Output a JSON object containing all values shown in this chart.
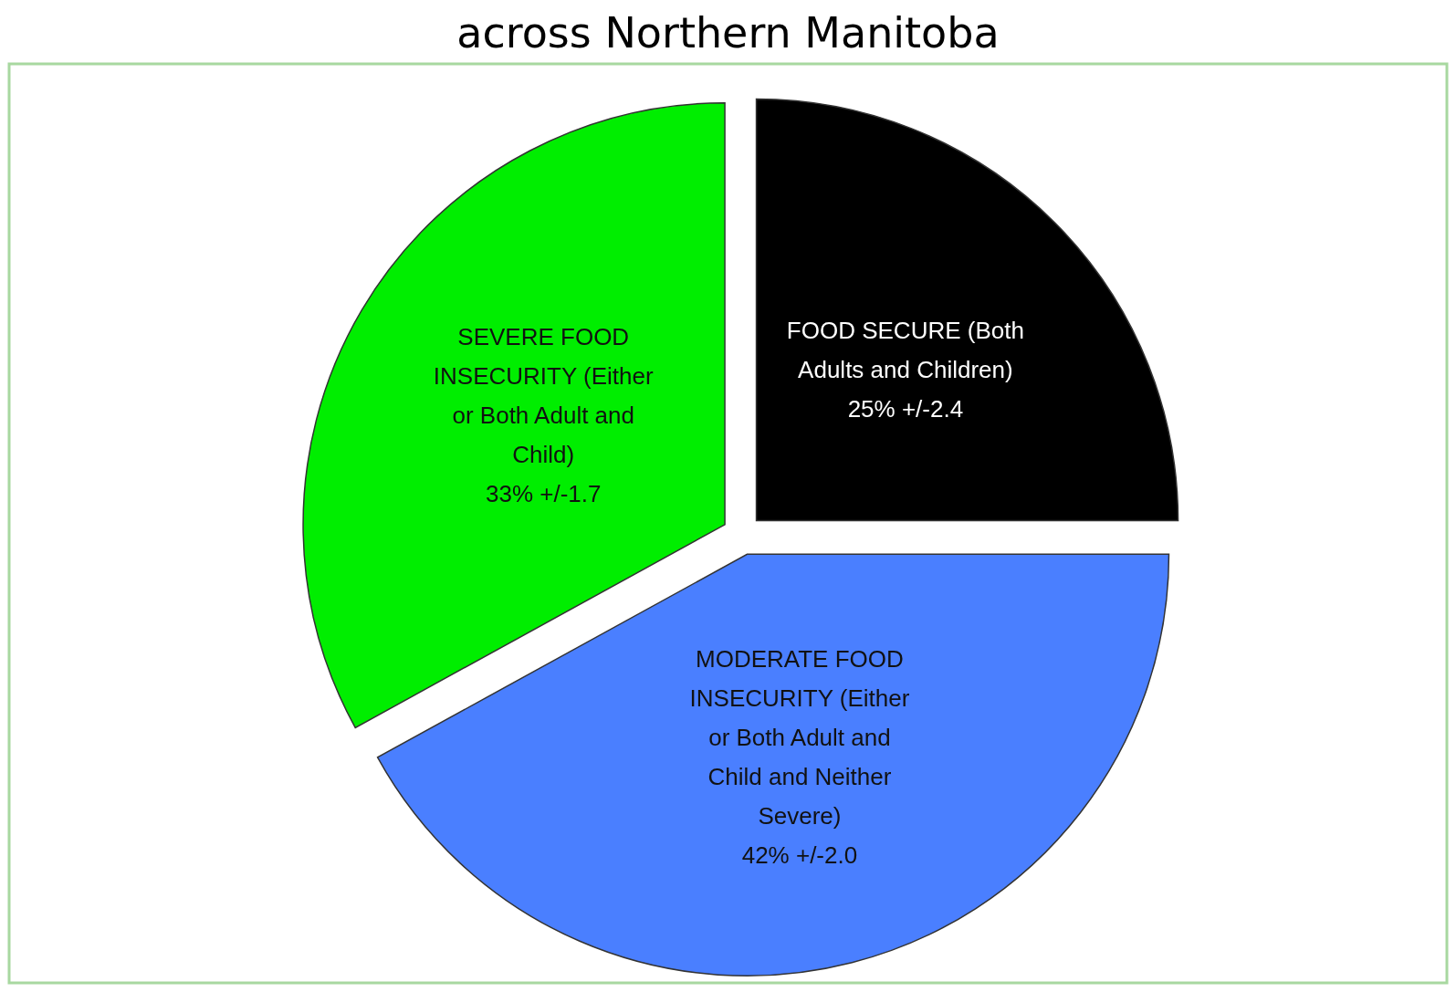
{
  "chart_data": {
    "type": "pie",
    "title": "across Northern Manitoba",
    "categories": [
      "FOOD SECURE (Both Adults and Children)",
      "MODERATE FOOD INSECURITY (Either or Both Adult and Child and Neither Severe)",
      "SEVERE FOOD INSECURITY (Either or Both Adult and Child)"
    ],
    "values": [
      25,
      42,
      33
    ],
    "value_labels": [
      "25% +/-2.4",
      "42% +/-2.0",
      "33% +/-1.7"
    ],
    "colors": [
      "#000000",
      "#4a7fff",
      "#00ee00"
    ]
  }
}
